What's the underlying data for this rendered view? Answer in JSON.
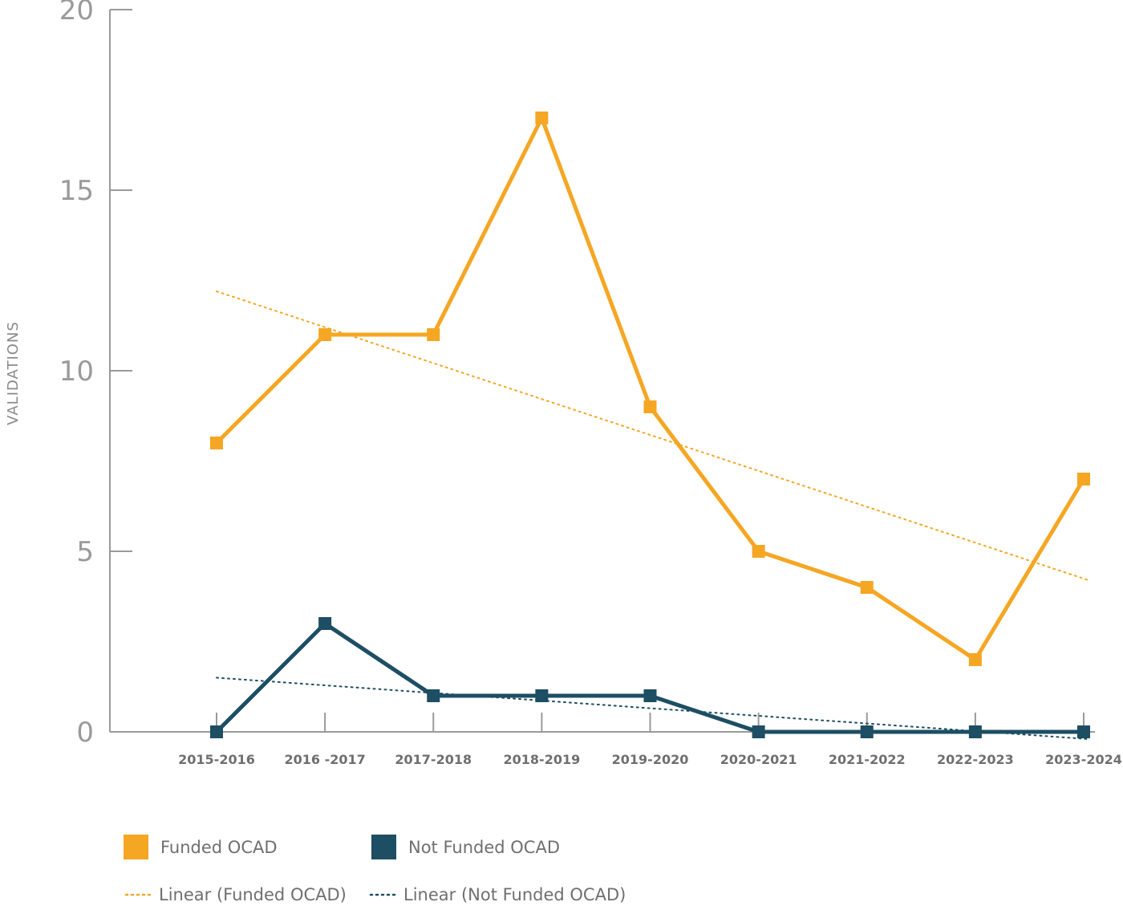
{
  "chart_data": {
    "type": "line",
    "title": "",
    "xlabel": "",
    "ylabel": "VALIDATIONS",
    "ylim": [
      0,
      20
    ],
    "yticks": [
      "0",
      "5",
      "10",
      "15",
      "20"
    ],
    "categories": [
      "2015-2016",
      "2016 -2017",
      "2017-2018",
      "2018-2019",
      "2019-2020",
      "2020-2021",
      "2021-2022",
      "2022-2023",
      "2023-2024"
    ],
    "grid": false,
    "legend_position": "bottom",
    "series": [
      {
        "name": "Funded OCAD",
        "color": "#F5A623",
        "values": [
          8,
          11,
          11,
          17,
          9,
          5,
          4,
          2,
          7
        ]
      },
      {
        "name": "Not Funded OCAD",
        "color": "#1D4E63",
        "values": [
          0,
          3,
          1,
          1,
          1,
          0,
          0,
          0,
          0
        ]
      }
    ],
    "trendlines": [
      {
        "name": "Linear  (Funded OCAD)",
        "color": "#F5A623",
        "start": 12.2,
        "end": 4.2
      },
      {
        "name": "Linear (Not Funded OCAD)",
        "color": "#1D4E63",
        "start": 1.5,
        "end": -0.2
      }
    ]
  }
}
